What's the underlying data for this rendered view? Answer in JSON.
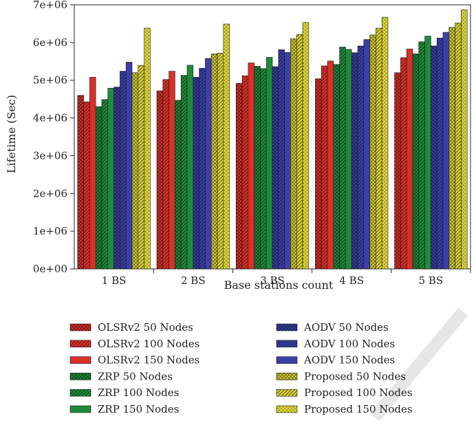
{
  "chart_data": {
    "type": "bar",
    "title": "",
    "xlabel": "Base stations count",
    "ylabel": "Lifetime (Sec)",
    "categories": [
      "1 BS",
      "2 BS",
      "3 BS",
      "4 BS",
      "5 BS"
    ],
    "ylim": [
      0,
      7000000
    ],
    "yticks": [
      0,
      1000000,
      2000000,
      3000000,
      4000000,
      5000000,
      6000000,
      7000000
    ],
    "ytick_labels": [
      "0e+00",
      "1e+06",
      "2e+06",
      "3e+06",
      "4e+06",
      "5e+06",
      "6e+06",
      "7e+06"
    ],
    "grid": false,
    "legend_position": "bottom",
    "series": [
      {
        "name": "OLSRv2 50 Nodes",
        "color": "#d9302a",
        "pattern": "crosshatch",
        "values": [
          4600000,
          4720000,
          4920000,
          5040000,
          5200000
        ]
      },
      {
        "name": "OLSRv2 100 Nodes",
        "color": "#d9302a",
        "pattern": "diagonal",
        "values": [
          4430000,
          5020000,
          5120000,
          5380000,
          5600000
        ]
      },
      {
        "name": "OLSRv2 150 Nodes",
        "color": "#d9302a",
        "pattern": "solid",
        "values": [
          5080000,
          5240000,
          5460000,
          5510000,
          5830000
        ]
      },
      {
        "name": "ZRP 50 Nodes",
        "color": "#1f8a3a",
        "pattern": "crosshatch",
        "values": [
          4300000,
          4470000,
          5370000,
          5420000,
          5700000
        ]
      },
      {
        "name": "ZRP 100 Nodes",
        "color": "#1f8a3a",
        "pattern": "diagonal",
        "values": [
          4490000,
          5130000,
          5310000,
          5880000,
          6020000
        ]
      },
      {
        "name": "ZRP 150 Nodes",
        "color": "#1f8a3a",
        "pattern": "solid",
        "values": [
          4790000,
          5400000,
          5610000,
          5820000,
          6170000
        ]
      },
      {
        "name": "AODV 50 Nodes",
        "color": "#3b3fa8",
        "pattern": "crosshatch",
        "values": [
          4820000,
          5080000,
          5360000,
          5730000,
          5910000
        ]
      },
      {
        "name": "AODV 100 Nodes",
        "color": "#3b3fa8",
        "pattern": "diagonal",
        "values": [
          5240000,
          5320000,
          5810000,
          5910000,
          6120000
        ]
      },
      {
        "name": "AODV 150 Nodes",
        "color": "#3b3fa8",
        "pattern": "solid",
        "values": [
          5480000,
          5580000,
          5740000,
          6080000,
          6270000
        ]
      },
      {
        "name": "Proposed 50 Nodes",
        "color": "#d8d038",
        "pattern": "crosshatch",
        "values": [
          5200000,
          5700000,
          6100000,
          6200000,
          6400000
        ]
      },
      {
        "name": "Proposed 100 Nodes",
        "color": "#d8d038",
        "pattern": "diagonal",
        "values": [
          5390000,
          5720000,
          6210000,
          6380000,
          6520000
        ]
      },
      {
        "name": "Proposed 150 Nodes",
        "color": "#d8d038",
        "pattern": "dotted",
        "values": [
          6380000,
          6490000,
          6530000,
          6670000,
          6870000
        ]
      }
    ]
  }
}
